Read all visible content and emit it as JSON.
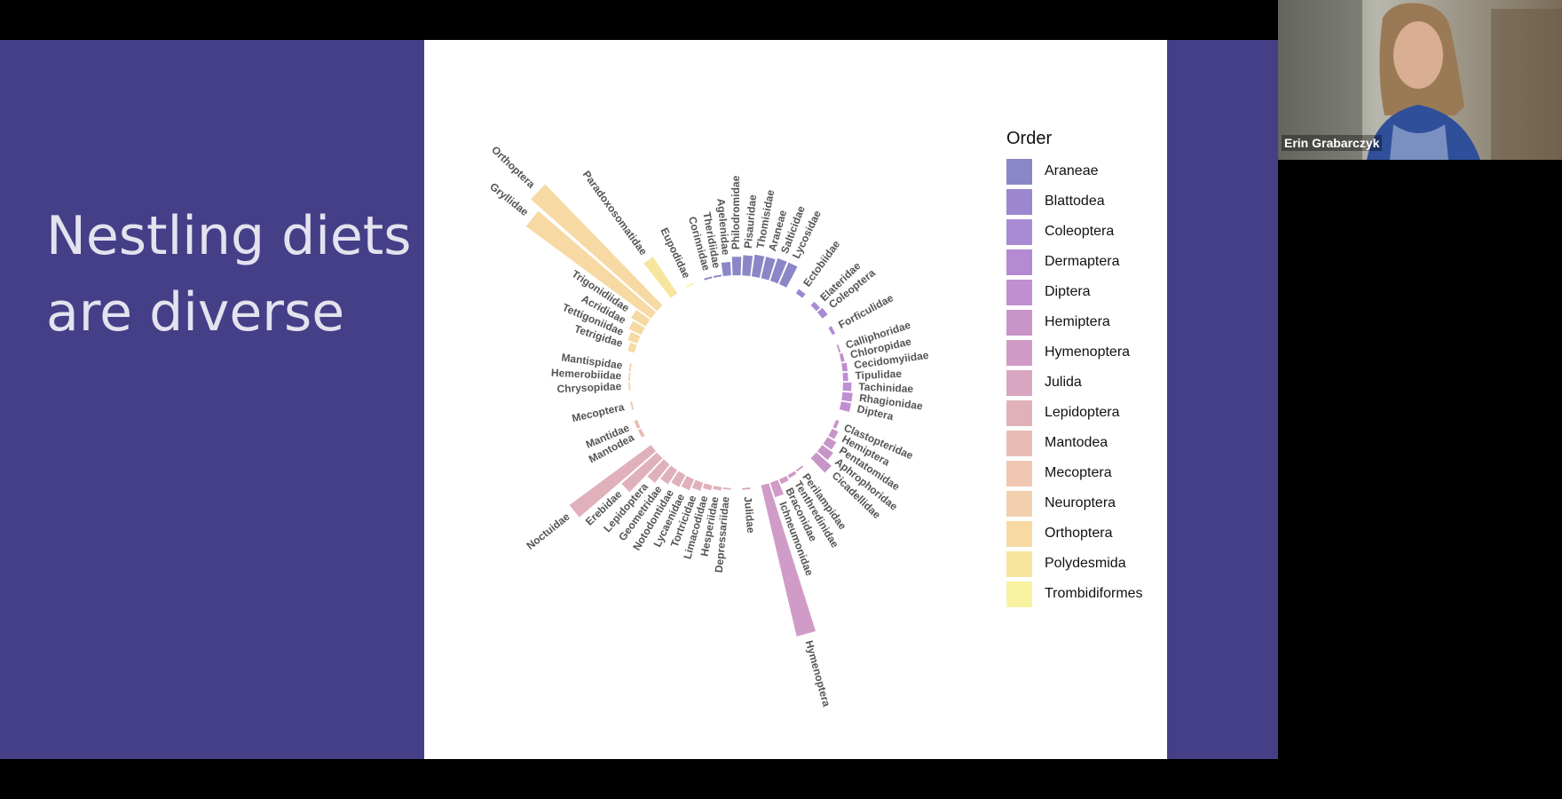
{
  "slide": {
    "title_line1": "Nestling diets",
    "title_line2": "are diverse"
  },
  "video": {
    "participant_name": "Erin Grabarczyk"
  },
  "chart_data": {
    "type": "bar",
    "subtype": "circular-bar",
    "ylim": [
      0,
      100
    ],
    "legend": {
      "title": "Order",
      "placement": "right",
      "entries": [
        {
          "name": "Araneae",
          "color": "#8b87c6"
        },
        {
          "name": "Blattodea",
          "color": "#9c87cf"
        },
        {
          "name": "Coleoptera",
          "color": "#a98bd4"
        },
        {
          "name": "Dermaptera",
          "color": "#b48ad3"
        },
        {
          "name": "Diptera",
          "color": "#bf8fd1"
        },
        {
          "name": "Hemiptera",
          "color": "#c895c9"
        },
        {
          "name": "Hymenoptera",
          "color": "#d09cc7"
        },
        {
          "name": "Julida",
          "color": "#d9a6c1"
        },
        {
          "name": "Lepidoptera",
          "color": "#e0b1ba"
        },
        {
          "name": "Mantodea",
          "color": "#e8bcb5"
        },
        {
          "name": "Mecoptera",
          "color": "#efc7b2"
        },
        {
          "name": "Neuroptera",
          "color": "#f3d0ad"
        },
        {
          "name": "Orthoptera",
          "color": "#f6d9a3"
        },
        {
          "name": "Polydesmida",
          "color": "#f7e59d"
        },
        {
          "name": "Trombidiformes",
          "color": "#f9f2a1"
        }
      ]
    },
    "categories": [
      {
        "label": "Corinnidae",
        "order": "Araneae",
        "value": 1
      },
      {
        "label": "Theridiidae",
        "order": "Araneae",
        "value": 1
      },
      {
        "label": "Agelenidae",
        "order": "Araneae",
        "value": 8
      },
      {
        "label": "Philodromidae",
        "order": "Araneae",
        "value": 11
      },
      {
        "label": "Pisauridae",
        "order": "Araneae",
        "value": 12
      },
      {
        "label": "Thomisidae",
        "order": "Araneae",
        "value": 13
      },
      {
        "label": "Araneae",
        "order": "Araneae",
        "value": 13
      },
      {
        "label": "Salticidae",
        "order": "Araneae",
        "value": 14
      },
      {
        "label": "Lycosidae",
        "order": "Araneae",
        "value": 14
      },
      {
        "label": "",
        "order": "Araneae",
        "value": 0
      },
      {
        "label": "Ectobiidae",
        "order": "Blattodea",
        "value": 3
      },
      {
        "label": "",
        "order": "Blattodea",
        "value": 0
      },
      {
        "label": "Elateridae",
        "order": "Coleoptera",
        "value": 3
      },
      {
        "label": "Coleoptera",
        "order": "Coleoptera",
        "value": 4
      },
      {
        "label": "",
        "order": "Coleoptera",
        "value": 0
      },
      {
        "label": "Forficulidae",
        "order": "Dermaptera",
        "value": 2
      },
      {
        "label": "",
        "order": "Dermaptera",
        "value": 0
      },
      {
        "label": "Calliphoridae",
        "order": "Diptera",
        "value": 1
      },
      {
        "label": "Chloropidae",
        "order": "Diptera",
        "value": 2
      },
      {
        "label": "Cecidomyiidae",
        "order": "Diptera",
        "value": 3
      },
      {
        "label": "Tipulidae",
        "order": "Diptera",
        "value": 3
      },
      {
        "label": "Tachinidae",
        "order": "Diptera",
        "value": 5
      },
      {
        "label": "Rhagionidae",
        "order": "Diptera",
        "value": 6
      },
      {
        "label": "Diptera",
        "order": "Diptera",
        "value": 6
      },
      {
        "label": "",
        "order": "Diptera",
        "value": 0
      },
      {
        "label": "Clastopteridae",
        "order": "Hemiptera",
        "value": 2
      },
      {
        "label": "Hemiptera",
        "order": "Hemiptera",
        "value": 4
      },
      {
        "label": "Pentatomidae",
        "order": "Hemiptera",
        "value": 6
      },
      {
        "label": "Aphrophoridae",
        "order": "Hemiptera",
        "value": 8
      },
      {
        "label": "Cicadellidae",
        "order": "Hemiptera",
        "value": 12
      },
      {
        "label": "",
        "order": "Hemiptera",
        "value": 0
      },
      {
        "label": "Perilampidae",
        "order": "Hymenoptera",
        "value": 1
      },
      {
        "label": "Tenthredinidae",
        "order": "Hymenoptera",
        "value": 2
      },
      {
        "label": "Braconidae",
        "order": "Hymenoptera",
        "value": 3
      },
      {
        "label": "Ichneumonidae",
        "order": "Hymenoptera",
        "value": 9
      },
      {
        "label": "Hymenoptera",
        "order": "Hymenoptera",
        "value": 92
      },
      {
        "label": "",
        "order": "Hymenoptera",
        "value": 0
      },
      {
        "label": "Julidae",
        "order": "Julida",
        "value": 1
      },
      {
        "label": "",
        "order": "Julida",
        "value": 0
      },
      {
        "label": "Depressariidae",
        "order": "Lepidoptera",
        "value": 1
      },
      {
        "label": "Hesperiidae",
        "order": "Lepidoptera",
        "value": 2
      },
      {
        "label": "Limacodidae",
        "order": "Lepidoptera",
        "value": 3
      },
      {
        "label": "Tortricidae",
        "order": "Lepidoptera",
        "value": 5
      },
      {
        "label": "Lycaenidae",
        "order": "Lepidoptera",
        "value": 7
      },
      {
        "label": "Notodontidae",
        "order": "Lepidoptera",
        "value": 8
      },
      {
        "label": "Geometridae",
        "order": "Lepidoptera",
        "value": 10
      },
      {
        "label": "Lepidoptera",
        "order": "Lepidoptera",
        "value": 14
      },
      {
        "label": "Erebidae",
        "order": "Lepidoptera",
        "value": 28
      },
      {
        "label": "Noctuidae",
        "order": "Lepidoptera",
        "value": 60
      },
      {
        "label": "",
        "order": "Lepidoptera",
        "value": 0
      },
      {
        "label": "Mantodea",
        "order": "Mantodea",
        "value": 2
      },
      {
        "label": "Mantidae",
        "order": "Mantodea",
        "value": 2
      },
      {
        "label": "",
        "order": "Mantodea",
        "value": 0
      },
      {
        "label": "Mecoptera",
        "order": "Mecoptera",
        "value": 1
      },
      {
        "label": "",
        "order": "Mecoptera",
        "value": 0
      },
      {
        "label": "Chrysopidae",
        "order": "Neuroptera",
        "value": 1
      },
      {
        "label": "Hemerobiidae",
        "order": "Neuroptera",
        "value": 1
      },
      {
        "label": "Mantispidae",
        "order": "Neuroptera",
        "value": 1
      },
      {
        "label": "",
        "order": "Neuroptera",
        "value": 0
      },
      {
        "label": "Tetrigidae",
        "order": "Orthoptera",
        "value": 4
      },
      {
        "label": "Tettigoniidae",
        "order": "Orthoptera",
        "value": 6
      },
      {
        "label": "Acrididae",
        "order": "Orthoptera",
        "value": 8
      },
      {
        "label": "Trigonidiidae",
        "order": "Orthoptera",
        "value": 10
      },
      {
        "label": "Gryllidae",
        "order": "Orthoptera",
        "value": 92
      },
      {
        "label": "Orthoptera",
        "order": "Orthoptera",
        "value": 100
      },
      {
        "label": "",
        "order": "Orthoptera",
        "value": 0
      },
      {
        "label": "Paradoxosomatidae",
        "order": "Polydesmida",
        "value": 26
      },
      {
        "label": "",
        "order": "Polydesmida",
        "value": 0
      },
      {
        "label": "Eupodidae",
        "order": "Trombidiformes",
        "value": 1
      },
      {
        "label": "",
        "order": "Trombidiformes",
        "value": 0
      }
    ]
  }
}
